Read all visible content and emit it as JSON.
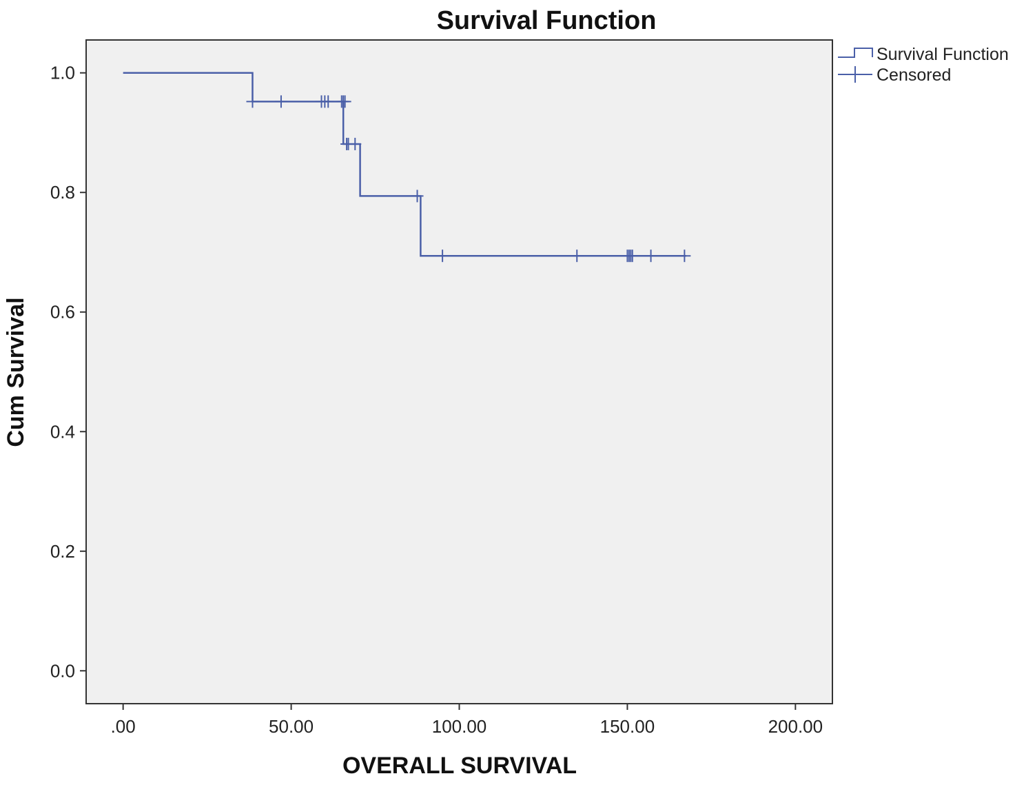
{
  "chart_data": {
    "type": "line",
    "title": "Survival Function",
    "xlabel": "OVERALL SURVIVAL",
    "ylabel": "Cum Survival",
    "xlim": [
      -11,
      211
    ],
    "ylim": [
      -0.055,
      1.055
    ],
    "x_ticks": [
      0,
      50,
      100,
      150,
      200
    ],
    "x_tick_labels": [
      ".00",
      "50.00",
      "100.00",
      "150.00",
      "200.00"
    ],
    "y_ticks": [
      0.0,
      0.2,
      0.4,
      0.6,
      0.8,
      1.0
    ],
    "y_tick_labels": [
      "0.0",
      "0.2",
      "0.4",
      "0.6",
      "0.8",
      "1.0"
    ],
    "grid": false,
    "legend_position": "outside-top-right",
    "legend": [
      "Survival Function",
      "Censored"
    ],
    "series": [
      {
        "name": "Survival Function",
        "kind": "step",
        "x": [
          0,
          38.5,
          65.5,
          70.5,
          88.5,
          167.5
        ],
        "y": [
          1.0,
          0.952,
          0.881,
          0.794,
          0.694,
          0.694
        ]
      },
      {
        "name": "Censored",
        "kind": "marker",
        "x": [
          38.5,
          47,
          59,
          60,
          61,
          65,
          65.5,
          66,
          66.5,
          67,
          69,
          87.5,
          95,
          135,
          150,
          150.5,
          151,
          151.5,
          157,
          167
        ],
        "y": [
          0.952,
          0.952,
          0.952,
          0.952,
          0.952,
          0.952,
          0.952,
          0.952,
          0.881,
          0.881,
          0.881,
          0.794,
          0.694,
          0.694,
          0.694,
          0.694,
          0.694,
          0.694,
          0.694,
          0.694
        ]
      }
    ],
    "colors": {
      "line": "#4a5fa8",
      "plot_background": "#f0f0f0",
      "axis": "#333333"
    }
  }
}
